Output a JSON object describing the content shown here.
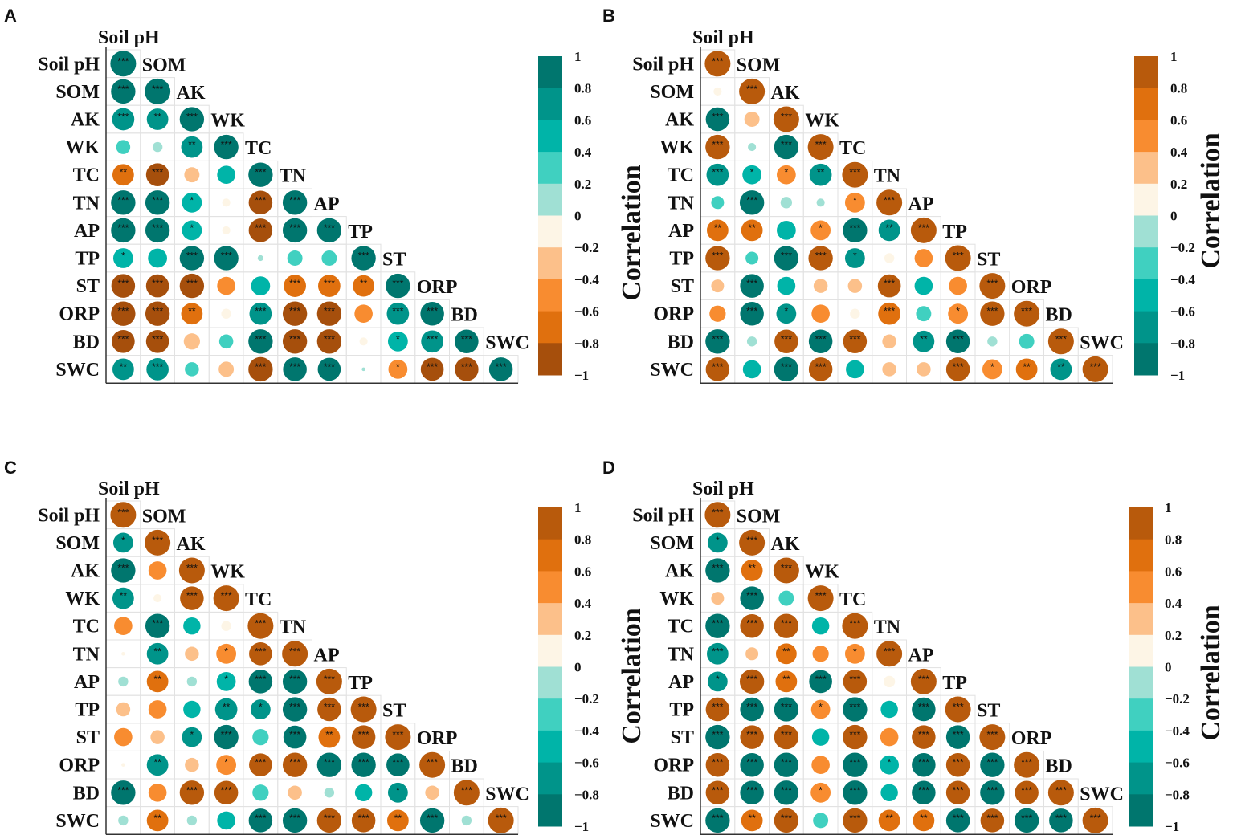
{
  "chart_data": [
    {
      "type": "heatmap",
      "panel": "A",
      "variables": [
        "Soil pH",
        "SOM",
        "AK",
        "WK",
        "TC",
        "TN",
        "AP",
        "TP",
        "ST",
        "ORP",
        "BD",
        "SWC"
      ],
      "colorbar_title": "",
      "colorbar_ticks": [
        "1",
        "0.8",
        "0.6",
        "0.4",
        "0.2",
        "0",
        "−0.2",
        "−0.4",
        "−0.6",
        "−0.8",
        "−1"
      ],
      "colorbar_colors": [
        "#00766e",
        "#00948a",
        "#00b4a8",
        "#40d0c0",
        "#a0e0d4",
        "#fdf5e6",
        "#fcc08a",
        "#f88c30",
        "#e0700e",
        "#a64f0c"
      ],
      "r": [
        [
          1
        ],
        [
          0.9,
          1
        ],
        [
          0.75,
          0.7,
          0.9
        ],
        [
          0.3,
          0.15,
          0.7,
          0.9
        ],
        [
          -0.7,
          -0.8,
          -0.35,
          0.5,
          0.9
        ],
        [
          0.9,
          0.9,
          0.6,
          -0.1,
          -0.85,
          0.9
        ],
        [
          0.9,
          0.9,
          0.6,
          -0.1,
          -0.85,
          0.9,
          0.9
        ],
        [
          0.6,
          0.55,
          0.9,
          0.9,
          0.05,
          0.35,
          0.35,
          0.9
        ],
        [
          -0.85,
          -0.8,
          -0.9,
          -0.5,
          0.55,
          -0.75,
          -0.75,
          -0.7,
          0.9
        ],
        [
          -0.9,
          -0.9,
          -0.7,
          -0.15,
          0.75,
          -0.9,
          -0.9,
          -0.5,
          0.75,
          0.85
        ],
        [
          -0.8,
          -0.8,
          -0.4,
          0.3,
          0.9,
          -0.9,
          -0.9,
          -0.1,
          0.6,
          0.75,
          0.85
        ],
        [
          0.7,
          0.75,
          0.3,
          -0.35,
          -0.9,
          0.85,
          0.8,
          0.02,
          -0.55,
          -0.8,
          -0.85,
          0.85
        ]
      ],
      "sig": [
        [
          "***"
        ],
        [
          "***",
          "***"
        ],
        [
          "***",
          "**",
          "***"
        ],
        [
          "",
          "",
          "**",
          "***"
        ],
        [
          "**",
          "***",
          "",
          "",
          "***"
        ],
        [
          "***",
          "***",
          "*",
          "",
          "***",
          "***"
        ],
        [
          "***",
          "***",
          "*",
          "",
          "***",
          "***",
          "***"
        ],
        [
          "*",
          "",
          "***",
          "***",
          "",
          "",
          "",
          "***"
        ],
        [
          "***",
          "***",
          "***",
          "",
          "",
          "***",
          "***",
          "**",
          "***"
        ],
        [
          "***",
          "***",
          "**",
          "",
          "***",
          "***",
          "***",
          "",
          "***",
          "***"
        ],
        [
          "***",
          "***",
          "",
          "",
          "***",
          "***",
          "***",
          "",
          "*",
          "***",
          "***"
        ],
        [
          "**",
          "***",
          "",
          "",
          "***",
          "***",
          "***",
          "",
          "*",
          "***",
          "***",
          "***"
        ]
      ]
    },
    {
      "type": "heatmap",
      "panel": "B",
      "variables": [
        "Soil pH",
        "SOM",
        "AK",
        "WK",
        "TC",
        "TN",
        "AP",
        "TP",
        "ST",
        "ORP",
        "BD",
        "SWC"
      ],
      "colorbar_title": "Correlation",
      "side_title": "Correlation",
      "colorbar_ticks": [
        "1",
        "0.8",
        "0.6",
        "0.4",
        "0.2",
        "0",
        "−0.2",
        "−0.4",
        "−0.6",
        "−0.8",
        "−1"
      ],
      "colorbar_colors": [
        "#b85a0c",
        "#e0700e",
        "#f88c30",
        "#fcc08a",
        "#fdf5e6",
        "#a0e0d4",
        "#40d0c0",
        "#00b4a8",
        "#00948a",
        "#00766e"
      ],
      "r": [
        [
          1
        ],
        [
          0.1,
          1
        ],
        [
          -0.85,
          0.35,
          1
        ],
        [
          0.9,
          -0.1,
          -0.9,
          1
        ],
        [
          -0.75,
          -0.55,
          0.55,
          -0.75,
          1
        ],
        [
          -0.25,
          -0.9,
          -0.2,
          -0.1,
          0.6,
          1
        ],
        [
          0.7,
          0.7,
          -0.55,
          0.6,
          -0.9,
          -0.7,
          1
        ],
        [
          0.9,
          -0.25,
          -0.9,
          0.9,
          -0.6,
          0.15,
          0.5,
          1
        ],
        [
          0.25,
          -0.85,
          -0.5,
          0.3,
          0.3,
          0.8,
          -0.5,
          0.5,
          1
        ],
        [
          0.4,
          -0.85,
          -0.6,
          0.5,
          0.15,
          0.75,
          -0.35,
          0.6,
          0.9,
          1
        ],
        [
          -0.9,
          -0.15,
          0.85,
          -0.85,
          0.85,
          0.3,
          -0.7,
          -0.85,
          -0.15,
          -0.35,
          1
        ],
        [
          0.85,
          -0.5,
          -0.9,
          0.85,
          -0.5,
          0.3,
          0.3,
          0.85,
          0.6,
          0.7,
          -0.7,
          1
        ]
      ],
      "sig": [
        [
          "***"
        ],
        [
          "",
          "***"
        ],
        [
          "***",
          "",
          "***"
        ],
        [
          "***",
          "",
          "***",
          "***"
        ],
        [
          "***",
          "*",
          "*",
          "**",
          "***"
        ],
        [
          "",
          "***",
          "",
          "",
          "*",
          "***"
        ],
        [
          "**",
          "**",
          "",
          "*",
          "***",
          "**",
          "***"
        ],
        [
          "***",
          "",
          "***",
          "***",
          "*",
          "",
          "",
          "***"
        ],
        [
          "",
          "***",
          "",
          "",
          "",
          "***",
          "",
          "",
          "***"
        ],
        [
          "",
          "***",
          "*",
          "",
          "",
          "***",
          "",
          "*",
          "***",
          "***"
        ],
        [
          "***",
          "",
          "***",
          "***",
          "***",
          "",
          "**",
          "***",
          "",
          "",
          "***"
        ],
        [
          "***",
          "",
          "***",
          "***",
          "",
          "",
          "",
          "***",
          "*",
          "**",
          "**",
          "***"
        ]
      ]
    },
    {
      "type": "heatmap",
      "panel": "C",
      "variables": [
        "Soil pH",
        "SOM",
        "AK",
        "WK",
        "TC",
        "TN",
        "AP",
        "TP",
        "ST",
        "ORP",
        "BD",
        "SWC"
      ],
      "colorbar_title": "",
      "colorbar_ticks": [
        "1",
        "0.8",
        "0.6",
        "0.4",
        "0.2",
        "0",
        "−0.2",
        "−0.4",
        "−0.6",
        "−0.8",
        "−1"
      ],
      "colorbar_colors": [
        "#b85a0c",
        "#e0700e",
        "#f88c30",
        "#fcc08a",
        "#fdf5e6",
        "#a0e0d4",
        "#40d0c0",
        "#00b4a8",
        "#00948a",
        "#00766e"
      ],
      "r": [
        [
          1
        ],
        [
          -0.6,
          1
        ],
        [
          -0.9,
          0.5,
          1
        ],
        [
          -0.7,
          0.1,
          0.85,
          1
        ],
        [
          0.5,
          -0.9,
          -0.45,
          0.15,
          1
        ],
        [
          0.02,
          -0.7,
          0.3,
          0.6,
          0.8,
          1
        ],
        [
          -0.15,
          0.7,
          -0.15,
          -0.55,
          -0.85,
          -0.9,
          1
        ],
        [
          0.3,
          0.5,
          -0.45,
          -0.75,
          -0.6,
          -0.9,
          0.85,
          1
        ],
        [
          0.5,
          0.3,
          -0.6,
          -0.9,
          -0.4,
          -0.8,
          0.7,
          0.85,
          1
        ],
        [
          0.02,
          -0.7,
          0.3,
          0.6,
          0.8,
          0.9,
          -0.9,
          -0.9,
          -0.8,
          1
        ],
        [
          -0.9,
          0.5,
          0.9,
          0.85,
          -0.4,
          0.3,
          -0.15,
          -0.45,
          -0.6,
          0.3,
          1
        ],
        [
          -0.15,
          0.7,
          -0.15,
          -0.5,
          -0.85,
          -0.9,
          0.9,
          0.85,
          0.7,
          -0.9,
          -0.15,
          1
        ]
      ],
      "sig": [
        [
          "***"
        ],
        [
          "*",
          "***"
        ],
        [
          "***",
          "",
          "***"
        ],
        [
          "**",
          "",
          "***",
          "***"
        ],
        [
          "",
          "***",
          "",
          "",
          "***"
        ],
        [
          "",
          "**",
          "",
          "*",
          "***",
          "***"
        ],
        [
          "",
          "**",
          "",
          "*",
          "***",
          "***",
          "***"
        ],
        [
          "",
          "",
          "",
          "**",
          "*",
          "***",
          "***",
          "***"
        ],
        [
          "",
          "",
          "*",
          "***",
          "",
          "***",
          "**",
          "***",
          "***"
        ],
        [
          "",
          "**",
          "",
          "*",
          "***",
          "***",
          "***",
          "***",
          "***",
          "***"
        ],
        [
          "***",
          "",
          "***",
          "***",
          "",
          "",
          "",
          "",
          "*",
          "",
          "***"
        ],
        [
          "",
          "**",
          "",
          "",
          "***",
          "***",
          "***",
          "***",
          "**",
          "***",
          "",
          "***"
        ]
      ]
    },
    {
      "type": "heatmap",
      "panel": "D",
      "variables": [
        "Soil pH",
        "SOM",
        "AK",
        "WK",
        "TC",
        "TN",
        "AP",
        "TP",
        "ST",
        "ORP",
        "BD",
        "SWC"
      ],
      "colorbar_title": "Correlation",
      "side_title": "Correlation",
      "colorbar_ticks": [
        "1",
        "0.8",
        "0.6",
        "0.4",
        "0.2",
        "0",
        "−0.2",
        "−0.4",
        "−0.6",
        "−0.8",
        "−1"
      ],
      "colorbar_colors": [
        "#b85a0c",
        "#e0700e",
        "#f88c30",
        "#fcc08a",
        "#fdf5e6",
        "#a0e0d4",
        "#40d0c0",
        "#00b4a8",
        "#00948a",
        "#00766e"
      ],
      "r": [
        [
          1
        ],
        [
          -0.6,
          1
        ],
        [
          -0.9,
          0.7,
          1
        ],
        [
          0.25,
          -0.85,
          -0.35,
          1
        ],
        [
          -0.9,
          0.85,
          0.9,
          -0.45,
          1
        ],
        [
          -0.7,
          0.25,
          0.65,
          0.4,
          0.6,
          1
        ],
        [
          -0.6,
          0.9,
          0.7,
          -0.8,
          0.85,
          0.2,
          1
        ],
        [
          0.85,
          -0.85,
          -0.9,
          0.55,
          -0.9,
          -0.45,
          -0.85,
          1
        ],
        [
          -0.9,
          0.85,
          0.9,
          -0.45,
          0.9,
          0.5,
          0.85,
          -0.85,
          1
        ],
        [
          0.85,
          -0.85,
          -0.9,
          0.5,
          -0.9,
          -0.55,
          -0.85,
          0.85,
          -0.9,
          1
        ],
        [
          0.85,
          -0.85,
          -0.9,
          0.6,
          -0.9,
          -0.45,
          -0.85,
          0.85,
          -0.9,
          0.85,
          1
        ],
        [
          -0.9,
          0.7,
          0.9,
          -0.35,
          0.9,
          0.7,
          0.7,
          -0.85,
          0.85,
          -0.9,
          -0.85,
          1
        ]
      ],
      "sig": [
        [
          "***"
        ],
        [
          "*",
          "***"
        ],
        [
          "***",
          "**",
          "***"
        ],
        [
          "",
          "***",
          "",
          "***"
        ],
        [
          "***",
          "***",
          "***",
          "",
          "***"
        ],
        [
          "***",
          "",
          "**",
          "",
          "*",
          "***"
        ],
        [
          "*",
          "***",
          "**",
          "***",
          "***",
          "",
          "***"
        ],
        [
          "***",
          "***",
          "***",
          "*",
          "***",
          "",
          "***",
          "***"
        ],
        [
          "***",
          "***",
          "***",
          "",
          "***",
          "",
          "***",
          "***",
          "***"
        ],
        [
          "***",
          "***",
          "***",
          "",
          "***",
          "*",
          "***",
          "***",
          "***",
          "***"
        ],
        [
          "***",
          "***",
          "***",
          "*",
          "***",
          "",
          "***",
          "***",
          "***",
          "***",
          "***"
        ],
        [
          "***",
          "**",
          "***",
          "",
          "***",
          "**",
          "**",
          "***",
          "***",
          "***",
          "***",
          "***"
        ]
      ]
    }
  ]
}
